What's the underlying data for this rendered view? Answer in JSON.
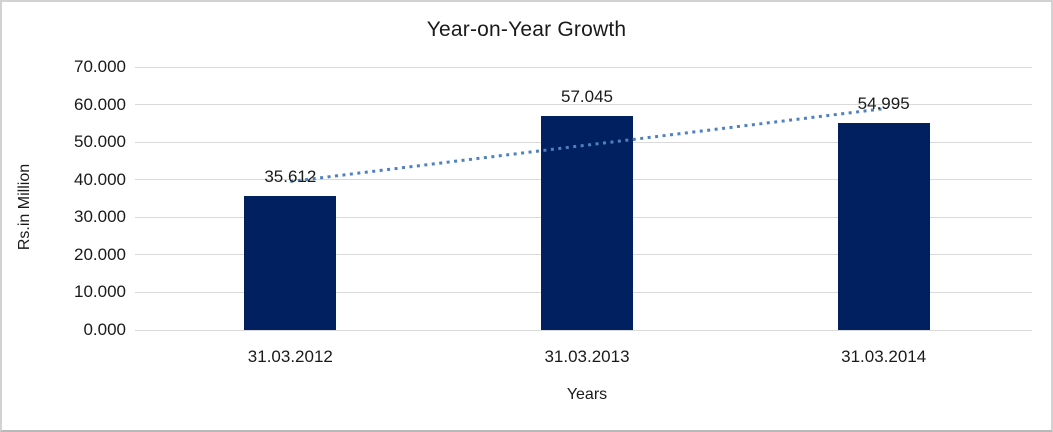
{
  "chart_data": {
    "type": "bar",
    "title": "Year-on-Year Growth",
    "xlabel": "Years",
    "ylabel": "Rs.in Million",
    "categories": [
      "31.03.2012",
      "31.03.2013",
      "31.03.2014"
    ],
    "values": [
      35.612,
      57.045,
      54.995
    ],
    "data_labels": [
      "35.612",
      "57.045",
      "54.995"
    ],
    "ylim": [
      0,
      70
    ],
    "ytick_step": 10,
    "ytick_labels": [
      "0.000",
      "10.000",
      "20.000",
      "30.000",
      "40.000",
      "50.000",
      "60.000",
      "70.000"
    ],
    "grid": true,
    "legend": "none",
    "trendline": {
      "kind": "linear",
      "style": "dotted"
    },
    "colors": {
      "bar": "#002060",
      "trendline": "#4F81BD",
      "gridline": "#d9d9d9",
      "text": "#1a1a1a",
      "figure_border": "#d2d2d2"
    }
  }
}
